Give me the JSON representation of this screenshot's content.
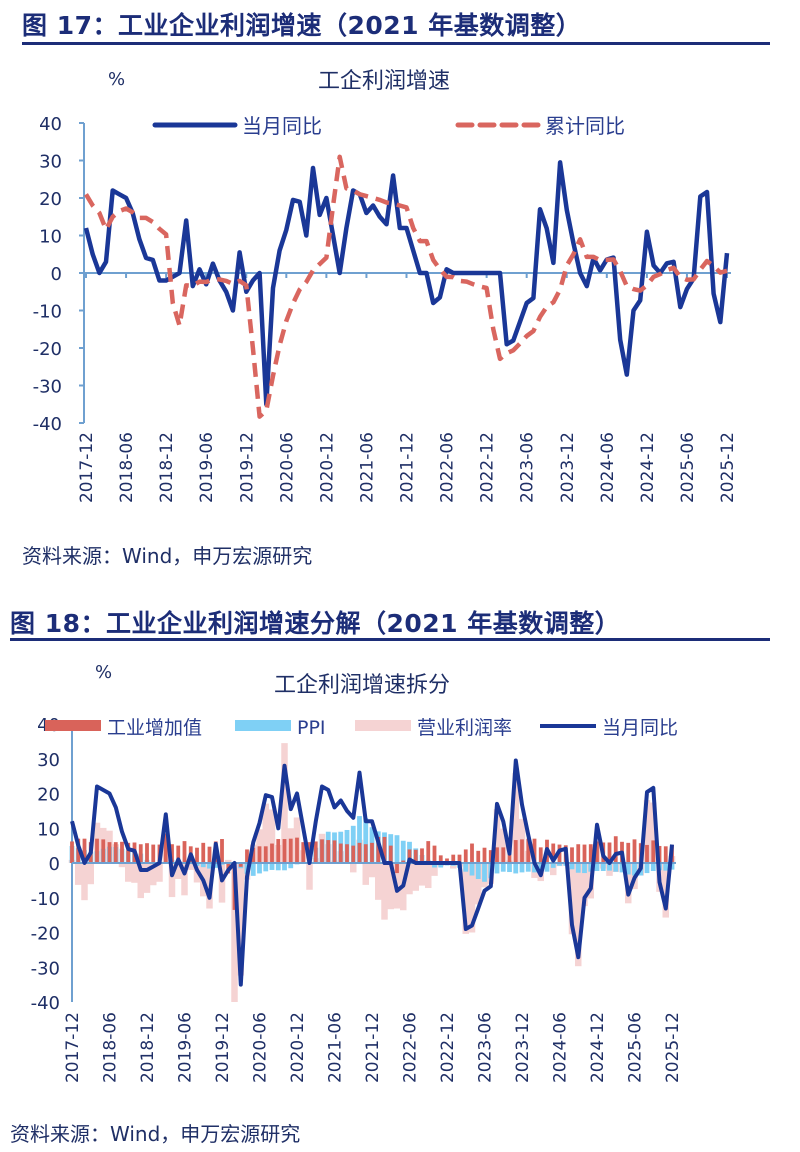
{
  "figures": [
    {
      "header": "图 17：工业企业利润增速（2021 年基数调整）",
      "source": "资料来源：Wind，申万宏源研究"
    },
    {
      "header": "图 18：工业企业利润增速分解（2021 年基数调整）",
      "source": "资料来源：Wind，申万宏源研究"
    }
  ],
  "chart_data": [
    {
      "type": "line",
      "title": "工企利润增速",
      "ylabel": "%",
      "ylim": [
        -40,
        40
      ],
      "yticks": [
        40,
        30,
        20,
        10,
        0,
        -10,
        -20,
        -30,
        -40
      ],
      "x_start": "2017-12",
      "x_end": "2025-12",
      "x_frequency": "monthly",
      "xtick_labels": [
        "2017-12",
        "2018-06",
        "2018-12",
        "2019-06",
        "2019-12",
        "2020-06",
        "2020-12",
        "2021-06",
        "2021-12",
        "2022-06",
        "2022-12",
        "2023-06",
        "2023-12",
        "2024-06",
        "2024-12",
        "2025-06",
        "2025-12"
      ],
      "legend_position": "top",
      "grid": false,
      "series": [
        {
          "name": "当月同比",
          "style": "solid",
          "color": "#1a3797",
          "values": [
            12,
            5,
            0,
            3,
            22,
            21,
            20,
            16,
            9,
            4,
            3.5,
            -2,
            -2,
            -1,
            0,
            14,
            -3.5,
            1,
            -3,
            2.5,
            -2,
            -5,
            -10,
            5.5,
            -5,
            -2,
            0,
            -35,
            -4,
            6,
            11.5,
            19.5,
            19,
            10,
            28,
            15.5,
            20,
            10,
            0,
            12,
            22,
            21,
            16,
            18,
            15,
            13,
            26,
            12,
            12,
            6,
            0,
            0,
            -8,
            -6.5,
            1,
            0,
            0,
            0,
            0,
            0,
            0,
            0,
            0,
            -19,
            -18,
            -13,
            -8,
            -6.7,
            17,
            11.9,
            2.7,
            29.5,
            16.8,
            8,
            0,
            -3.5,
            4,
            0.7,
            3.6,
            4.1,
            -17.8,
            -27.1,
            -10,
            -7.3,
            11,
            2,
            0,
            2.6,
            3,
            -9.1,
            -4.3,
            -1.5,
            20.4,
            21.6,
            -5.5,
            -13.1,
            5.3
          ]
        },
        {
          "name": "累计同比",
          "style": "dashed",
          "color": "#d9665f",
          "values": [
            21,
            18,
            16,
            11.6,
            15,
            16.5,
            17.2,
            16.2,
            14.7,
            14.7,
            13.6,
            11.8,
            10.3,
            -8,
            -14,
            -3.3,
            -3.4,
            -2.3,
            -2.4,
            -1.7,
            -1.7,
            -2.1,
            -2.9,
            -2.1,
            -3.3,
            -20,
            -38.3,
            -36.7,
            -27.4,
            -19.3,
            -12.8,
            -8.1,
            -4.4,
            -2.4,
            0.7,
            2.4,
            4.1,
            18,
            31,
            22.6,
            22,
            21,
            20.5,
            20,
            19.5,
            18.8,
            18.5,
            18,
            17.5,
            12,
            8.5,
            8.5,
            3.5,
            1,
            -1,
            -1.1,
            -2.1,
            -2.3,
            -3,
            -3.6,
            -4,
            -15,
            -22.9,
            -21.4,
            -20.6,
            -18.8,
            -16.8,
            -15.5,
            -11.7,
            -9,
            -7.8,
            -4.4,
            2,
            5,
            9,
            4.3,
            4.3,
            3.4,
            3.5,
            3.6,
            0.5,
            -3.5,
            -4.3,
            -4.7,
            -3.3,
            -1,
            -0.3,
            0.8,
            1.4,
            -1.1,
            -1.8,
            -1.7,
            0.9,
            3.2,
            1.9,
            0.1,
            0.6
          ]
        }
      ]
    },
    {
      "type": "bar",
      "title": "工企利润增速拆分",
      "ylabel": "%",
      "ylim": [
        -40,
        40
      ],
      "yticks": [
        40,
        30,
        20,
        10,
        0,
        -10,
        -20,
        -30,
        -40
      ],
      "x_start": "2017-12",
      "x_end": "2025-12",
      "x_frequency": "monthly",
      "xtick_labels": [
        "2017-12",
        "2018-06",
        "2018-12",
        "2019-06",
        "2019-12",
        "2020-06",
        "2020-12",
        "2021-06",
        "2021-12",
        "2022-06",
        "2022-12",
        "2023-06",
        "2023-12",
        "2024-06",
        "2024-12",
        "2025-06",
        "2025-12"
      ],
      "legend_position": "top",
      "grid": false,
      "series": [
        {
          "name": "工业增加值",
          "kind": "bar",
          "color": "#d9635a",
          "values": [
            6.2,
            7,
            7,
            6,
            7,
            6.8,
            6,
            6,
            6.1,
            5.8,
            5.9,
            5.4,
            5.7,
            5.3,
            5.3,
            8.5,
            5.4,
            5,
            6.3,
            4.8,
            4.4,
            5.8,
            4.7,
            6.2,
            6.9,
            -3,
            -13.5,
            -1.1,
            3.9,
            4.4,
            4.8,
            4.8,
            5.6,
            6.9,
            6.9,
            7,
            7.3,
            6,
            6,
            6.2,
            6.8,
            6.6,
            6.5,
            5.6,
            5.4,
            5,
            5.8,
            5.4,
            5.8,
            7.5,
            7.5,
            5,
            -2.9,
            0.7,
            3.9,
            3.8,
            4.2,
            6.3,
            5,
            2.2,
            1.3,
            2.4,
            2.4,
            3.9,
            5.6,
            3.5,
            4.4,
            3.7,
            4.5,
            4.5,
            4.6,
            6.6,
            6.8,
            7,
            7,
            4.5,
            6.7,
            5.6,
            5.3,
            5.1,
            4.5,
            5.4,
            5.3,
            5.4,
            6.2,
            5.9,
            5.9,
            7.7,
            6.1,
            5.8,
            6.8,
            5.7,
            5.2,
            6.5,
            4.9,
            4.8,
            5.2
          ]
        },
        {
          "name": "PPI",
          "kind": "bar",
          "color": "#7fd0f5",
          "values": [
            4.9,
            4.3,
            3.7,
            3.1,
            3.4,
            4.1,
            4.7,
            4.6,
            4.1,
            3.6,
            3.3,
            2.7,
            0.9,
            0.1,
            0.1,
            0.4,
            0.9,
            0.6,
            0,
            -0.3,
            -0.8,
            -1.2,
            -1.6,
            -1.4,
            -0.5,
            0.1,
            -0.4,
            -1.5,
            -3.1,
            -3.7,
            -3,
            -2.4,
            -2,
            -2.1,
            -2.1,
            -1.5,
            -0.4,
            0.3,
            1.7,
            4.4,
            6.8,
            9,
            8.8,
            9,
            9.5,
            10.7,
            13.5,
            12.9,
            10.3,
            9.1,
            8.8,
            8.3,
            8,
            6.4,
            6.1,
            4.2,
            2.3,
            0.9,
            -1.3,
            -1.3,
            -0.7,
            -0.8,
            -1.4,
            -2.5,
            -3.6,
            -4.6,
            -5.4,
            -4.4,
            -3,
            -2.5,
            -2.6,
            -3,
            -2.7,
            -2.5,
            -2.7,
            -2.8,
            -2.5,
            -1.4,
            -0.8,
            -0.8,
            -1.8,
            -2.8,
            -2.9,
            -2.5,
            -2.3,
            -2.3,
            -2.2,
            -2.5,
            -2.7,
            -3.3,
            -3.6,
            -3.6,
            -2.9,
            -2.3,
            -2.1,
            -2.2,
            -1.9
          ]
        },
        {
          "name": "营业利润率",
          "kind": "bar",
          "color": "#f5d3d3",
          "values": [
            0.9,
            -6.3,
            -10.7,
            -6.1,
            11.6,
            10.1,
            9.3,
            5.4,
            -1.2,
            -5.4,
            -5.7,
            -10.1,
            -8.6,
            -6.4,
            -5.4,
            5.1,
            -9.8,
            -4.6,
            -9.3,
            -2,
            -5.6,
            -9.6,
            -13.1,
            0.7,
            -11.4,
            0.9,
            -40,
            -32.4,
            -4.8,
            5.3,
            9.7,
            17.1,
            15.4,
            5.2,
            34.5,
            10,
            13.1,
            3.7,
            -7.7,
            1.4,
            8.4,
            5.4,
            0.7,
            3.4,
            0.1,
            -2.7,
            6.7,
            -6.3,
            -4.1,
            -10.6,
            -16.3,
            -13.3,
            -13.1,
            -13.6,
            -9,
            -8,
            -6.5,
            -7.2,
            -3.7,
            -0.9,
            -0.6,
            -1.6,
            -1,
            -20.4,
            -20,
            -11.9,
            -7,
            -6,
            15.5,
            9.9,
            0.7,
            25.9,
            12.7,
            3.5,
            -4.3,
            -5.2,
            -0.2,
            -3.5,
            -0.9,
            -0.2,
            -20.5,
            -29.7,
            -12.4,
            -10.2,
            7.1,
            -1.6,
            -3.7,
            -2.6,
            -0.4,
            -11.6,
            -7.5,
            -3.6,
            18.1,
            17.4,
            -8.3,
            -15.7,
            2
          ]
        },
        {
          "name": "当月同比",
          "kind": "line",
          "color": "#1a3797",
          "values": [
            12,
            5,
            0,
            3,
            22,
            21,
            20,
            16,
            9,
            4,
            3.5,
            -2,
            -2,
            -1,
            0,
            14,
            -3.5,
            1,
            -3,
            2.5,
            -2,
            -5,
            -10,
            5.5,
            -5,
            -2,
            0,
            -35,
            -4,
            6,
            11.5,
            19.5,
            19,
            10,
            28,
            15.5,
            20,
            10,
            0,
            12,
            22,
            21,
            16,
            18,
            15,
            13,
            26,
            12,
            12,
            6,
            0,
            0,
            -8,
            -6.5,
            1,
            0,
            0,
            0,
            0,
            0,
            0,
            0,
            0,
            -19,
            -18,
            -13,
            -8,
            -6.7,
            17,
            11.9,
            2.7,
            29.5,
            16.8,
            8,
            0,
            -3.5,
            4,
            0.7,
            3.6,
            4.1,
            -17.8,
            -27.1,
            -10,
            -7.3,
            11,
            2,
            0,
            2.6,
            3,
            -9.1,
            -4.3,
            -1.5,
            20.4,
            21.6,
            -5.5,
            -13.1,
            5.3
          ]
        }
      ]
    }
  ]
}
